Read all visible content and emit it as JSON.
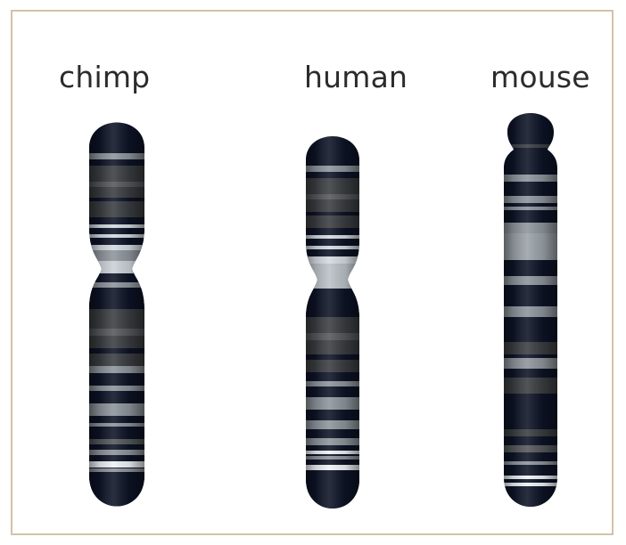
{
  "labels": {
    "chimp": "chimp",
    "human": "human",
    "mouse": "mouse"
  },
  "colors": {
    "border": "#d2c3a8",
    "label_text": "#2b2b2b",
    "band_dark": "#0d1326",
    "band_charcoal": "#3a3d40",
    "band_dark_gray": "#54585a",
    "band_gray": "#8d949b",
    "band_light": "#d3dae0",
    "band_white": "#eef2f5"
  }
}
